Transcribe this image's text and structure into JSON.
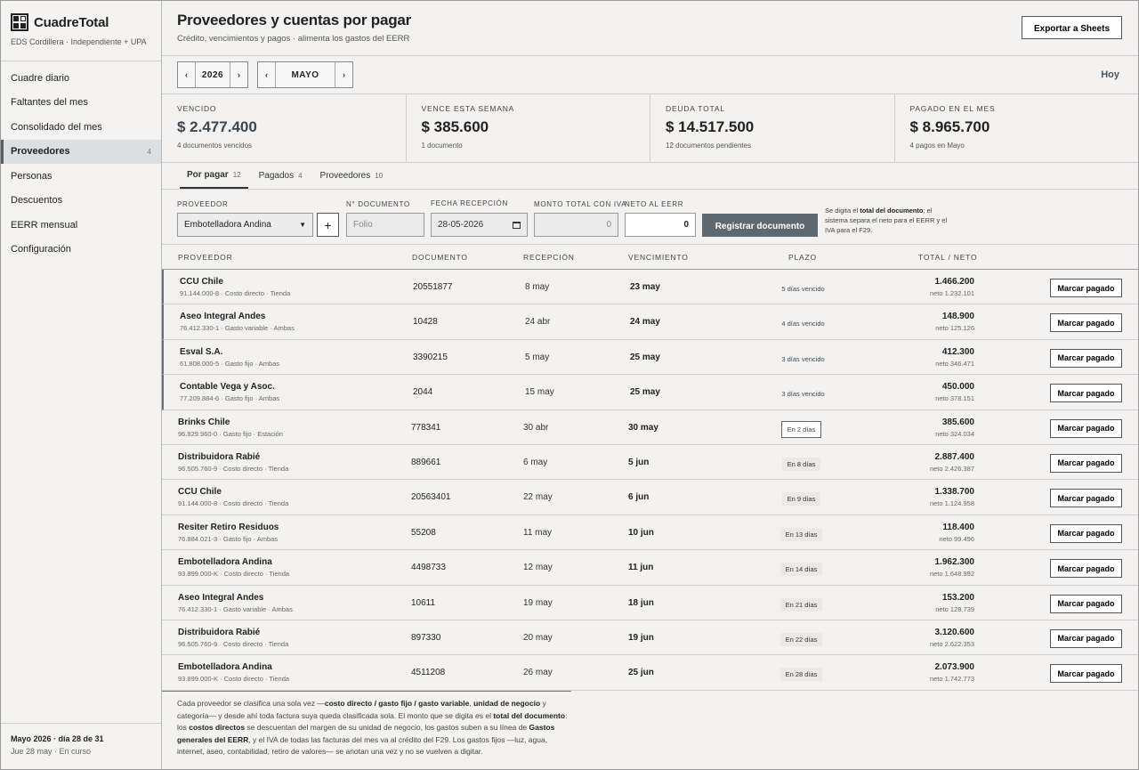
{
  "brand": {
    "name": "CuadreTotal",
    "subtitle": "EDS Cordillera · Independiente + UPA",
    "logo_icon": "grid-logo-icon"
  },
  "sidebar": {
    "items": [
      {
        "label": "Cuadre diario",
        "count": ""
      },
      {
        "label": "Faltantes del mes",
        "count": ""
      },
      {
        "label": "Consolidado del mes",
        "count": ""
      },
      {
        "label": "Proveedores",
        "count": "4",
        "active": true
      },
      {
        "label": "Personas",
        "count": ""
      },
      {
        "label": "Descuentos",
        "count": ""
      },
      {
        "label": "EERR mensual",
        "count": ""
      },
      {
        "label": "Configuración",
        "count": ""
      }
    ],
    "footer": {
      "line1": "Mayo 2026 · día 28 de 31",
      "line2": "Jue 28 may · En curso"
    }
  },
  "header": {
    "title": "Proveedores y cuentas por pagar",
    "subtitle": "Crédito, vencimientos y pagos · alimenta los gastos del EERR",
    "export_label": "Exportar a Sheets"
  },
  "period": {
    "year": "2026",
    "month": "MAYO",
    "prev_icon": "‹",
    "next_icon": "›",
    "today_label": "Hoy"
  },
  "kpis": [
    {
      "label": "VENCIDO",
      "value": "$ 2.477.400",
      "note": "4 documentos vencidos"
    },
    {
      "label": "VENCE ESTA SEMANA",
      "value": "$ 385.600",
      "note": "1 documento"
    },
    {
      "label": "DEUDA TOTAL",
      "value": "$ 14.517.500",
      "note": "12 documentos pendientes"
    },
    {
      "label": "PAGADO EN EL MES",
      "value": "$ 8.965.700",
      "note": "4 pagos en Mayo"
    }
  ],
  "tabs": [
    {
      "label": "Por pagar",
      "count": "12",
      "active": true
    },
    {
      "label": "Pagados",
      "count": "4"
    },
    {
      "label": "Proveedores",
      "count": "10"
    }
  ],
  "form": {
    "proveedor_label": "PROVEEDOR",
    "proveedor_value": "Embotelladora Andina",
    "add_label": "+",
    "doc_label": "N° DOCUMENTO",
    "doc_placeholder": "Folio",
    "fecha_label": "FECHA RECEPCIÓN",
    "fecha_value": "28-05-2026",
    "monto_label": "MONTO TOTAL CON IVA",
    "monto_value": "0",
    "neto_label": "NETO AL EERR",
    "neto_value": "0",
    "register_label": "Registrar documento",
    "note_a": "Se digita el ",
    "note_b": "total del documento",
    "note_c": "; el sistema separa el neto para el EERR y el IVA para el F29."
  },
  "table": {
    "headers": {
      "proveedor": "PROVEEDOR",
      "documento": "DOCUMENTO",
      "recepcion": "RECEPCIÓN",
      "vencimiento": "VENCIMIENTO",
      "plazo": "PLAZO",
      "total": "TOTAL / NETO"
    },
    "mark_label": "Marcar pagado",
    "rows": [
      {
        "name": "CCU Chile",
        "meta": "91.144.000-8 · Costo directo · Tienda",
        "doc": "20551877",
        "rec": "8 may",
        "ven": "23 may",
        "plazo": "5 días vencido",
        "status": "venc",
        "total": "1.466.200",
        "neto": "neto 1.232.101"
      },
      {
        "name": "Aseo Integral Andes",
        "meta": "76.412.330-1 · Gasto variable · Ambas",
        "doc": "10428",
        "rec": "24 abr",
        "ven": "24 may",
        "plazo": "4 días vencido",
        "status": "venc",
        "total": "148.900",
        "neto": "neto 125.126"
      },
      {
        "name": "Esval S.A.",
        "meta": "61.808.000-5 · Gasto fijo · Ambas",
        "doc": "3390215",
        "rec": "5 may",
        "ven": "25 may",
        "plazo": "3 días vencido",
        "status": "venc",
        "total": "412.300",
        "neto": "neto 346.471"
      },
      {
        "name": "Contable Vega y Asoc.",
        "meta": "77.209.884-6 · Gasto fijo · Ambas",
        "doc": "2044",
        "rec": "15 may",
        "ven": "25 may",
        "plazo": "3 días vencido",
        "status": "venc",
        "total": "450.000",
        "neto": "neto 378.151"
      },
      {
        "name": "Brinks Chile",
        "meta": "96.929.960-0 · Gasto fijo · Estación",
        "doc": "778341",
        "rec": "30 abr",
        "ven": "30 may",
        "plazo": "En 2 días",
        "status": "soon",
        "total": "385.600",
        "neto": "neto 324.034"
      },
      {
        "name": "Distribuidora Rabié",
        "meta": "96.505.760-9 · Costo directo · Tienda",
        "doc": "889661",
        "rec": "6 may",
        "ven": "5 jun",
        "plazo": "En 8 días",
        "status": "fut",
        "total": "2.887.400",
        "neto": "neto 2.426.387"
      },
      {
        "name": "CCU Chile",
        "meta": "91.144.000-8 · Costo directo · Tienda",
        "doc": "20563401",
        "rec": "22 may",
        "ven": "6 jun",
        "plazo": "En 9 días",
        "status": "fut",
        "total": "1.338.700",
        "neto": "neto 1.124.958"
      },
      {
        "name": "Resiter Retiro Residuos",
        "meta": "76.884.021-3 · Gasto fijo · Ambas",
        "doc": "55208",
        "rec": "11 may",
        "ven": "10 jun",
        "plazo": "En 13 días",
        "status": "fut",
        "total": "118.400",
        "neto": "neto 99.496"
      },
      {
        "name": "Embotelladora Andina",
        "meta": "93.899.000-K · Costo directo · Tienda",
        "doc": "4498733",
        "rec": "12 may",
        "ven": "11 jun",
        "plazo": "En 14 días",
        "status": "fut",
        "total": "1.962.300",
        "neto": "neto 1.648.992"
      },
      {
        "name": "Aseo Integral Andes",
        "meta": "76.412.330-1 · Gasto variable · Ambas",
        "doc": "10611",
        "rec": "19 may",
        "ven": "18 jun",
        "plazo": "En 21 días",
        "status": "fut",
        "total": "153.200",
        "neto": "neto 128.739"
      },
      {
        "name": "Distribuidora Rabié",
        "meta": "96.505.760-9 · Costo directo · Tienda",
        "doc": "897330",
        "rec": "20 may",
        "ven": "19 jun",
        "plazo": "En 22 días",
        "status": "fut",
        "total": "3.120.600",
        "neto": "neto 2.622.353"
      },
      {
        "name": "Embotelladora Andina",
        "meta": "93.899.000-K · Costo directo · Tienda",
        "doc": "4511208",
        "rec": "26 may",
        "ven": "25 jun",
        "plazo": "En 28 días",
        "status": "fut",
        "total": "2.073.900",
        "neto": "neto 1.742.773"
      }
    ]
  },
  "footer_note": [
    {
      "t": "Cada proveedor se clasifica una sola vez —",
      "b": false
    },
    {
      "t": "costo directo / gasto fijo / gasto variable",
      "b": true
    },
    {
      "t": ", ",
      "b": false
    },
    {
      "t": "unidad de negocio",
      "b": true
    },
    {
      "t": " y categoría— y desde ahí toda factura suya queda clasificada sola. El monto que se digita es el ",
      "b": false
    },
    {
      "t": "total del documento",
      "b": true
    },
    {
      "t": ": los ",
      "b": false
    },
    {
      "t": "costos directos",
      "b": true
    },
    {
      "t": " se descuentan del margen de su unidad de negocio, los gastos suben a su línea de ",
      "b": false
    },
    {
      "t": "Gastos generales del EERR",
      "b": true
    },
    {
      "t": ", y el IVA de todas las facturas del mes va al crédito del F29. Los gastos fijos —luz, agua, internet, aseo, contabilidad, retiro de valores— se anotan una vez y no se vuelven a digitar.",
      "b": false
    }
  ]
}
